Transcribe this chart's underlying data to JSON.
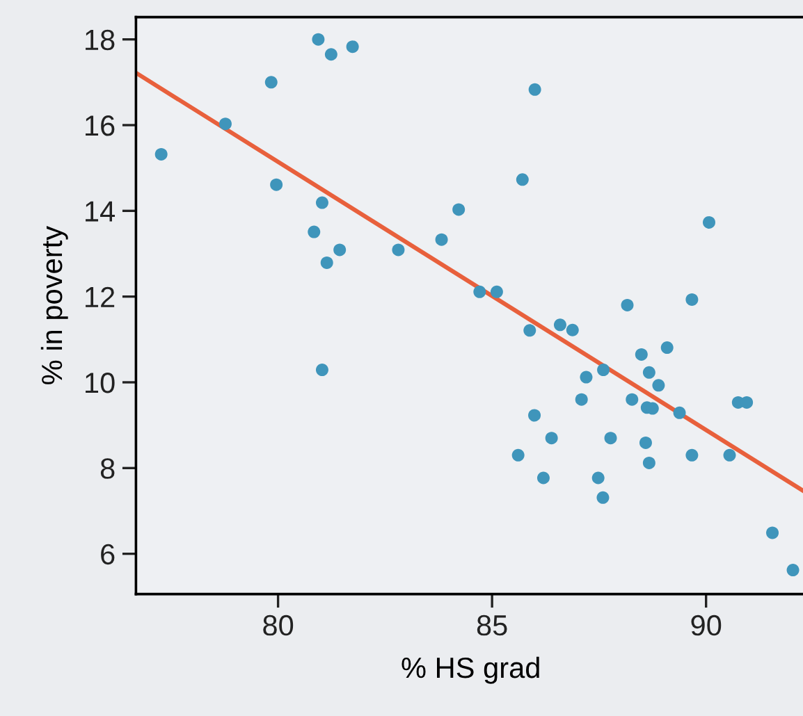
{
  "chart_data": {
    "type": "scatter",
    "xlabel": "% HS grad",
    "ylabel": "% in poverty",
    "xlim": [
      76.68,
      92.33
    ],
    "ylim": [
      5.06,
      18.52
    ],
    "xticks": [
      80,
      85,
      90
    ],
    "yticks": [
      6,
      8,
      10,
      12,
      14,
      16,
      18
    ],
    "grid": false,
    "series": [
      {
        "marker": "circle",
        "color": "#3f95bb",
        "x": [
          77.27,
          78.77,
          79.84,
          80.94,
          81.24,
          81.74,
          79.96,
          81.03,
          80.84,
          81.44,
          81.14,
          82.81,
          83.82,
          84.22,
          84.71,
          81.03,
          86.0,
          85.71,
          90.07,
          85.11,
          89.67,
          88.16,
          85.88,
          86.59,
          86.88,
          89.09,
          88.49,
          88.67,
          88.89,
          87.6,
          87.2,
          87.09,
          88.27,
          88.62,
          88.75,
          89.38,
          90.75,
          90.95,
          85.99,
          86.39,
          87.77,
          88.59,
          88.67,
          89.67,
          90.55,
          85.61,
          86.2,
          87.48,
          87.59,
          91.55,
          92.03
        ],
        "values": [
          15.32,
          16.03,
          17.0,
          18.0,
          17.65,
          17.83,
          14.61,
          14.19,
          13.51,
          13.09,
          12.79,
          13.09,
          13.33,
          14.03,
          12.11,
          10.29,
          16.83,
          14.73,
          13.73,
          12.11,
          11.93,
          11.8,
          11.21,
          11.34,
          11.22,
          10.81,
          10.65,
          10.23,
          9.93,
          10.29,
          10.12,
          9.6,
          9.6,
          9.41,
          9.39,
          9.29,
          9.53,
          9.53,
          9.23,
          8.7,
          8.7,
          8.59,
          8.12,
          8.3,
          8.3,
          8.3,
          7.77,
          7.77,
          7.31,
          6.49,
          5.62
        ]
      },
      {
        "type": "line",
        "color": "#e8603c",
        "line_style": "solid",
        "x": [
          76.68,
          92.33
        ],
        "values": [
          17.22,
          7.43
        ]
      }
    ]
  }
}
